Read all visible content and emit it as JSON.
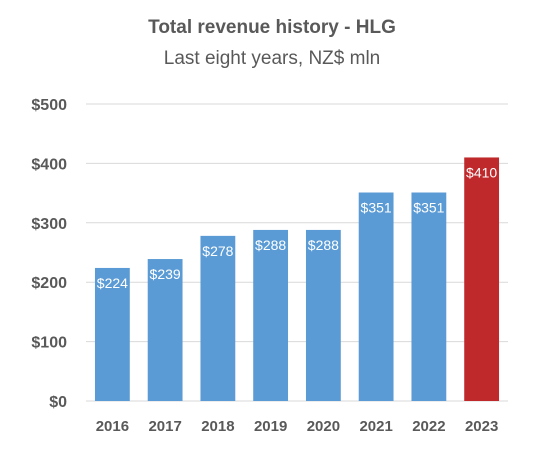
{
  "chart_data": {
    "type": "bar",
    "title": "Total revenue history - HLG",
    "subtitle": "Last eight years, NZ$ mln",
    "categories": [
      "2016",
      "2017",
      "2018",
      "2019",
      "2020",
      "2021",
      "2022",
      "2023"
    ],
    "values": [
      224,
      239,
      278,
      288,
      288,
      351,
      351,
      410
    ],
    "data_labels": [
      "$224",
      "$239",
      "$278",
      "$288",
      "$288",
      "$351",
      "$351",
      "$410"
    ],
    "y_ticks": [
      0,
      100,
      200,
      300,
      400,
      500
    ],
    "y_tick_labels": [
      "$0",
      "$100",
      "$200",
      "$300",
      "$400",
      "$500"
    ],
    "ylim": [
      0,
      500
    ],
    "grid": true,
    "legend": "none",
    "colors": {
      "default_bar": "#5b9bd5",
      "highlight_bar": "#c0292b"
    },
    "highlight_category": "2023"
  }
}
